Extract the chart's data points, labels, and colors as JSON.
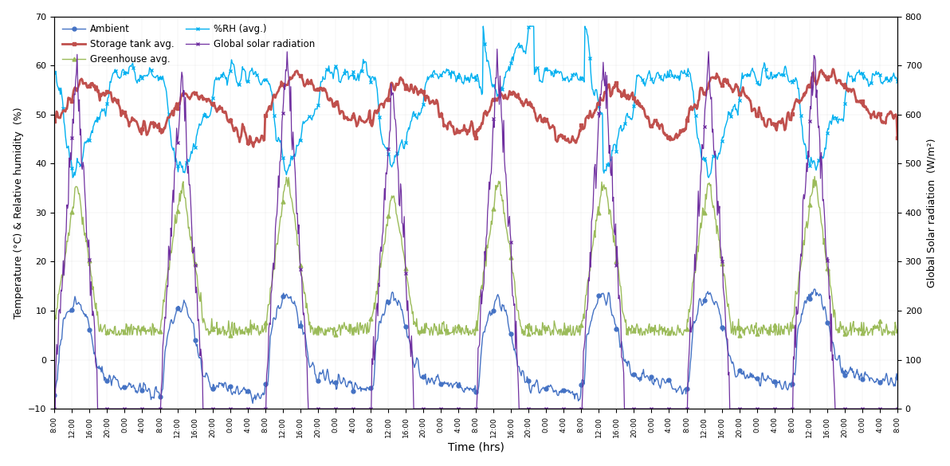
{
  "title": "",
  "xlabel": "Time (hrs)",
  "ylabel_left": "Temperature (°C) & Relative humidity  (%)",
  "ylabel_right": "Global Solar radiation  (W/m²)",
  "ylim_left": [
    -10,
    70
  ],
  "ylim_right": [
    0,
    800
  ],
  "yticks_left": [
    -10,
    0,
    10,
    20,
    30,
    40,
    50,
    60,
    70
  ],
  "yticks_right": [
    0,
    100,
    200,
    300,
    400,
    500,
    600,
    700,
    800
  ],
  "colors": {
    "ambient": "#4472C4",
    "storage": "#C0504D",
    "greenhouse": "#9BBB59",
    "rh": "#00B0F0",
    "solar": "#7030A0"
  },
  "legend": {
    "ambient": "Ambient",
    "storage": "Storage tank avg.",
    "greenhouse": "Greenhouse avg.",
    "rh": "%RH (avg.)",
    "solar": "Global solar radiation"
  },
  "background_color": "#FFFFFF"
}
